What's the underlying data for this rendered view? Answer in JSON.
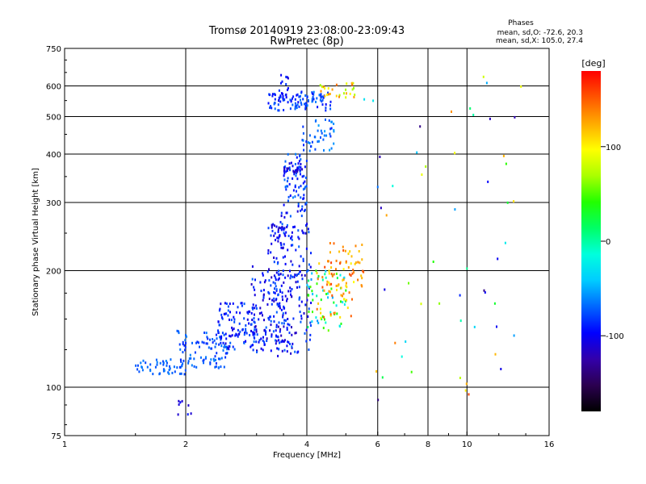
{
  "chart_data": {
    "type": "scatter",
    "title": "Tromsø 20140919 23:08:00-23:09:43",
    "subtitle": "RwPretec (8p)",
    "annotation": {
      "heading": "Phases",
      "line1": "mean, sd,O: -72.6, 20.3",
      "line2": "mean, sd,X: 105.0, 27.4"
    },
    "xlabel": "Frequency [MHz]",
    "ylabel": "Stationary phase Virtual Height [km]",
    "x_scale": "log",
    "y_scale": "log",
    "xlim": [
      1,
      16
    ],
    "ylim": [
      75,
      750
    ],
    "x_ticks": [
      {
        "value": 1,
        "label": "1"
      },
      {
        "value": 2,
        "label": "2"
      },
      {
        "value": 4,
        "label": "4"
      },
      {
        "value": 6,
        "label": "6"
      },
      {
        "value": 8,
        "label": "8"
      },
      {
        "value": 10,
        "label": "10"
      },
      {
        "value": 16,
        "label": "16"
      }
    ],
    "y_ticks": [
      {
        "value": 75,
        "label": "75"
      },
      {
        "value": 100,
        "label": "100"
      },
      {
        "value": 200,
        "label": "200"
      },
      {
        "value": 300,
        "label": "300"
      },
      {
        "value": 400,
        "label": "400"
      },
      {
        "value": 500,
        "label": "500"
      },
      {
        "value": 600,
        "label": "600"
      },
      {
        "value": 750,
        "label": "750"
      }
    ],
    "grid": true,
    "colorbar": {
      "label": "[deg]",
      "range": [
        -180,
        180
      ],
      "ticks": [
        {
          "value": 100,
          "label": "100"
        },
        {
          "value": 0,
          "label": "0"
        },
        {
          "value": -100,
          "label": "-100"
        }
      ],
      "colormap": [
        "#000000",
        "#2b0050",
        "#3300aa",
        "#0000ff",
        "#0066ff",
        "#00ccff",
        "#00ffdd",
        "#00ff66",
        "#22ff00",
        "#aaff00",
        "#ffff00",
        "#ffaa00",
        "#ff5500",
        "#ff0000"
      ]
    },
    "clusters": [
      {
        "x": [
          1.5,
          2.0
        ],
        "y": [
          108,
          118
        ],
        "phase": [
          -80,
          -60
        ],
        "count": 50
      },
      {
        "x": [
          1.9,
          2.6
        ],
        "y": [
          112,
          140
        ],
        "phase": [
          -90,
          -60
        ],
        "count": 90
      },
      {
        "x": [
          2.4,
          3.0
        ],
        "y": [
          125,
          165
        ],
        "phase": [
          -110,
          -65
        ],
        "count": 110
      },
      {
        "x": [
          2.9,
          3.6
        ],
        "y": [
          122,
          205
        ],
        "phase": [
          -120,
          -70
        ],
        "count": 140
      },
      {
        "x": [
          3.3,
          4.1
        ],
        "y": [
          120,
          290
        ],
        "phase": [
          -120,
          -70
        ],
        "count": 170
      },
      {
        "x": [
          3.2,
          3.6
        ],
        "y": [
          215,
          265
        ],
        "phase": [
          -120,
          -80
        ],
        "count": 40
      },
      {
        "x": [
          3.5,
          4.0
        ],
        "y": [
          285,
          400
        ],
        "phase": [
          -100,
          -60
        ],
        "count": 70
      },
      {
        "x": [
          3.5,
          3.9
        ],
        "y": [
          355,
          385
        ],
        "phase": [
          -120,
          -90
        ],
        "count": 25
      },
      {
        "x": [
          3.9,
          4.7
        ],
        "y": [
          400,
          500
        ],
        "phase": [
          -90,
          -50
        ],
        "count": 45
      },
      {
        "x": [
          3.2,
          4.6
        ],
        "y": [
          518,
          580
        ],
        "phase": [
          -100,
          -60
        ],
        "count": 100
      },
      {
        "x": [
          3.4,
          3.6
        ],
        "y": [
          540,
          645
        ],
        "phase": [
          -110,
          -80
        ],
        "count": 20
      },
      {
        "x": [
          4.3,
          5.3
        ],
        "y": [
          560,
          610
        ],
        "phase": [
          60,
          160
        ],
        "count": 30
      },
      {
        "x": [
          4.0,
          5.0
        ],
        "y": [
          140,
          200
        ],
        "phase": [
          -60,
          60
        ],
        "count": 60
      },
      {
        "x": [
          4.2,
          5.3
        ],
        "y": [
          150,
          210
        ],
        "phase": [
          90,
          160
        ],
        "count": 55
      },
      {
        "x": [
          4.5,
          5.6
        ],
        "y": [
          180,
          240
        ],
        "phase": [
          110,
          160
        ],
        "count": 40
      },
      {
        "x": [
          1.9,
          2.1
        ],
        "y": [
          85,
          93
        ],
        "phase": [
          -120,
          -90
        ],
        "count": 8
      },
      {
        "x": [
          5.5,
          14.0
        ],
        "y": [
          90,
          640
        ],
        "phase": [
          -150,
          160
        ],
        "count": 55
      }
    ]
  }
}
